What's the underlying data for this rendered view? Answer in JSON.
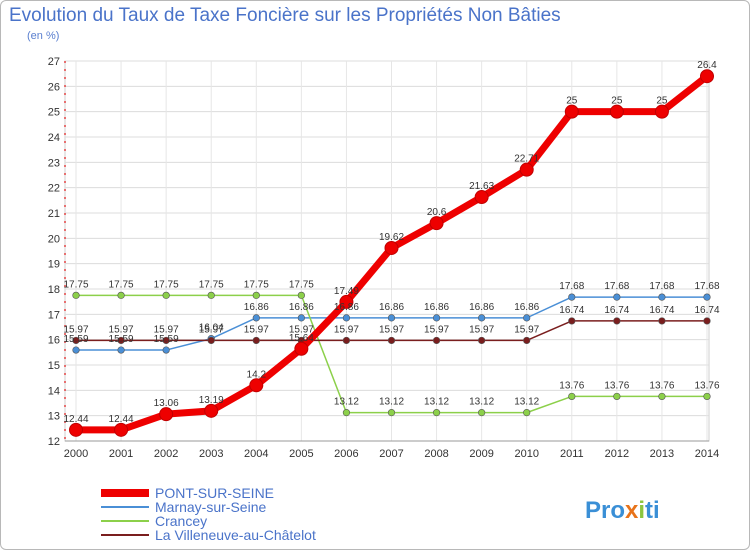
{
  "header": {
    "title": "Evolution du Taux de Taxe Foncière sur les Propriétés Non Bâties",
    "unit": "(en %)"
  },
  "logo": {
    "parts": [
      "Pro",
      "x",
      "i",
      "ti"
    ],
    "colors": [
      "#3a8fd6",
      "#e8731a",
      "#8cc63f",
      "#3a8fd6"
    ]
  },
  "chart_data": {
    "type": "line",
    "title": "Evolution du Taux de Taxe Foncière sur les Propriétés Non Bâties",
    "ylabel": "(en %)",
    "xlabel": "",
    "ylim": [
      12,
      27
    ],
    "yticks": [
      12,
      13,
      14,
      15,
      16,
      17,
      18,
      19,
      20,
      21,
      22,
      23,
      24,
      25,
      26,
      27
    ],
    "categories": [
      "2000",
      "2001",
      "2002",
      "2003",
      "2004",
      "2005",
      "2006",
      "2007",
      "2008",
      "2009",
      "2010",
      "2011",
      "2012",
      "2013",
      "2014"
    ],
    "series": [
      {
        "name": "PONT-SUR-SEINE",
        "color": "#ee0000",
        "values": [
          12.44,
          12.44,
          13.06,
          13.19,
          14.2,
          15.64,
          17.49,
          19.62,
          20.6,
          21.63,
          22.71,
          25,
          25,
          25,
          26.4
        ],
        "labels": [
          "12.44",
          "12.44",
          "13.06",
          "13.19",
          "14.2",
          "15.64",
          "17.49",
          "19.62",
          "20.6",
          "21.63",
          "22.71",
          "25",
          "25",
          "25",
          "26.4"
        ]
      },
      {
        "name": "Marnay-sur-Seine",
        "color": "#4a8fd6",
        "values": [
          15.59,
          15.59,
          15.59,
          16.04,
          16.86,
          16.86,
          16.86,
          16.86,
          16.86,
          16.86,
          16.86,
          17.68,
          17.68,
          17.68,
          17.68
        ],
        "labels": [
          "15.59",
          "15.59",
          "15.59",
          "16.04",
          "16.86",
          "16.86",
          "16.86",
          "16.86",
          "16.86",
          "16.86",
          "16.86",
          "17.68",
          "17.68",
          "17.68",
          "17.68"
        ]
      },
      {
        "name": "Crancey",
        "color": "#8cd04a",
        "values": [
          17.75,
          17.75,
          17.75,
          17.75,
          17.75,
          17.75,
          13.12,
          13.12,
          13.12,
          13.12,
          13.12,
          13.76,
          13.76,
          13.76,
          13.76
        ],
        "labels": [
          "17.75",
          "17.75",
          "17.75",
          "17.75",
          "17.75",
          "17.75",
          "13.12",
          "13.12",
          "13.12",
          "13.12",
          "13.12",
          "13.76",
          "13.76",
          "13.76",
          "13.76"
        ]
      },
      {
        "name": "La Villeneuve-au-Châtelot",
        "color": "#7a1e1e",
        "values": [
          15.97,
          15.97,
          15.97,
          15.97,
          15.97,
          15.97,
          15.97,
          15.97,
          15.97,
          15.97,
          15.97,
          16.74,
          16.74,
          16.74,
          16.74
        ],
        "labels": [
          "15.97",
          "15.97",
          "15.97",
          "15.97",
          "15.97",
          "15.97",
          "15.97",
          "15.97",
          "15.97",
          "15.97",
          "15.97",
          "16.74",
          "16.74",
          "16.74",
          "16.74"
        ]
      }
    ],
    "legend": "bottom-left"
  }
}
